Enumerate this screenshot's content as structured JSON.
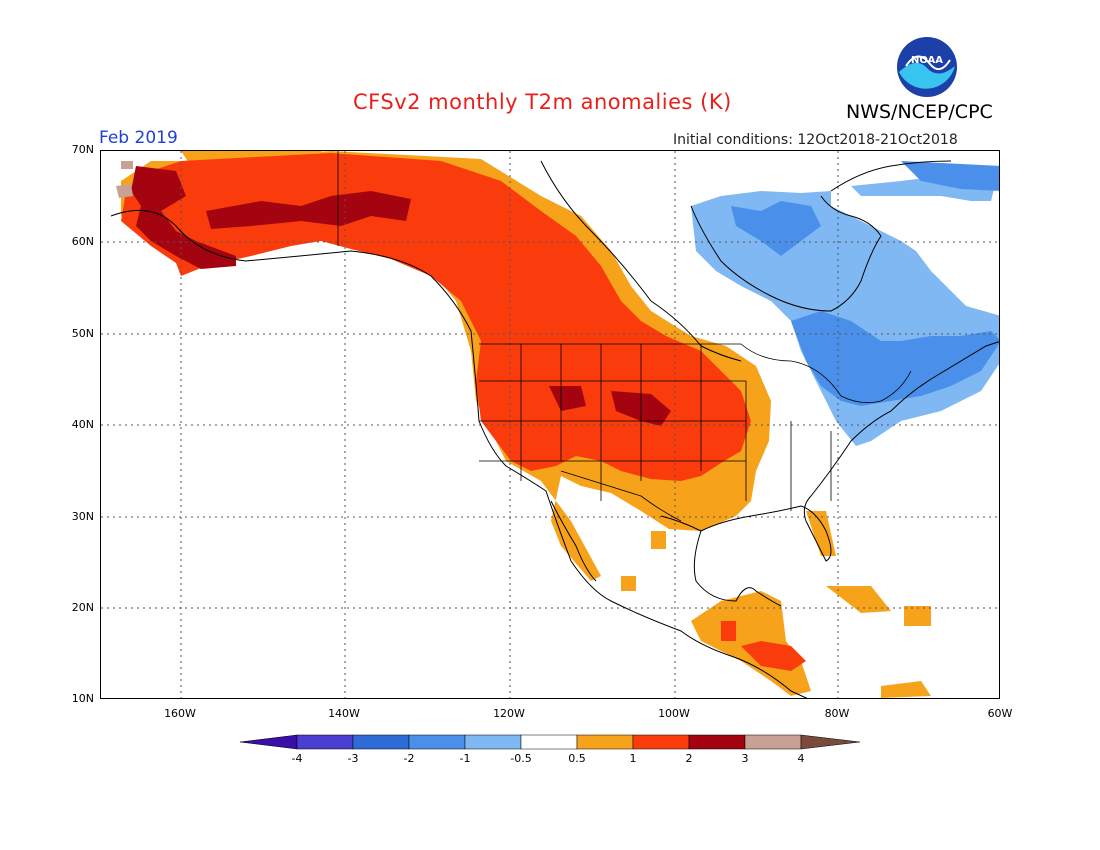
{
  "header": {
    "title": "CFSv2 monthly T2m anomalies (K)",
    "agency": "NWS/NCEP/CPC",
    "logo_text": "NOAA",
    "period": "Feb 2019",
    "initial_conditions": "Initial conditions: 12Oct2018-21Oct2018"
  },
  "axes": {
    "lat_labels": [
      "70N",
      "60N",
      "50N",
      "40N",
      "30N",
      "20N",
      "10N"
    ],
    "lon_labels": [
      "160W",
      "140W",
      "120W",
      "100W",
      "80W",
      "60W"
    ]
  },
  "colorbar": {
    "labels": [
      "-4",
      "-3",
      "-2",
      "-1",
      "-0.5",
      "0.5",
      "1",
      "2",
      "3",
      "4"
    ],
    "colors": [
      "#3a0fa8",
      "#4b3fd1",
      "#2f6bd6",
      "#4a90ea",
      "#7fb8f2",
      "#ffffff",
      "#f7a21b",
      "#fa3c0c",
      "#a3040f",
      "#c8a094",
      "#7a4a3a"
    ]
  },
  "colors": {
    "title": "#e8201c",
    "period": "#1f3fd6",
    "logo_blue": "#1d3fa8",
    "logo_cyan": "#38c4f0"
  }
}
